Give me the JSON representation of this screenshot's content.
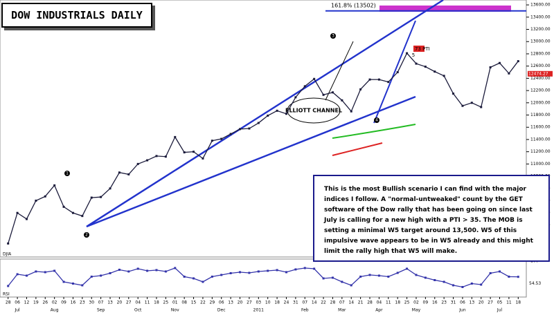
{
  "header": {
    "title": "DOW INDUSTRIALS DAILY"
  },
  "note": "This is the most Bullish scenario I can find with the major indices I follow. A \"normal-untweaked\" count by the GET software of the Dow rally that has been going on since last July is calling for a new high with a PTI > 35. The MOB is setting a minimal W5 target around 13,500. W5 of this impulsive wave appears to be in W5 already and this might limit the rally high that W5 will make.",
  "annotations": {
    "channel": "ELLIOTT CHANNEL",
    "pti": "73 PTI",
    "waves": [
      "1",
      "2",
      "3",
      "4",
      "5"
    ]
  },
  "chart_data": [
    {
      "type": "line",
      "categories": [
        "28",
        "06",
        "12",
        "19",
        "26",
        "02",
        "09",
        "16",
        "23",
        "30",
        "07",
        "13",
        "20",
        "27",
        "04",
        "11",
        "18",
        "25",
        "01",
        "08",
        "15",
        "22",
        "29",
        "06",
        "13",
        "20",
        "27",
        "03",
        "10",
        "18",
        "24",
        "31",
        "07",
        "14",
        "22",
        "28",
        "07",
        "14",
        "21",
        "28",
        "04",
        "11",
        "18",
        "25",
        "02",
        "09",
        "16",
        "23",
        "31",
        "06",
        "13",
        "20",
        "27",
        "05",
        "11",
        "18"
      ],
      "months": [
        "Jul",
        "Aug",
        "Sep",
        "Oct",
        "Nov",
        "Dec",
        "2011",
        "Feb",
        "Mar",
        "Apr",
        "May",
        "Jun",
        "Jul"
      ],
      "series": [
        {
          "name": "DJIA",
          "color": "#1a1a3a",
          "values": [
            9700,
            10200,
            10100,
            10400,
            10470,
            10650,
            10300,
            10200,
            10150,
            10450,
            10460,
            10600,
            10860,
            10830,
            11000,
            11060,
            11130,
            11120,
            11440,
            11190,
            11200,
            11090,
            11380,
            11410,
            11490,
            11570,
            11580,
            11670,
            11790,
            11870,
            11820,
            12090,
            12270,
            12390,
            12130,
            12170,
            12040,
            11860,
            12220,
            12380,
            12380,
            12340,
            12500,
            12810,
            12640,
            12590,
            12510,
            12440,
            12150,
            11950,
            12000,
            11930,
            12580,
            12650,
            12480,
            12680
          ]
        }
      ],
      "marker_value": 12474.27,
      "fib_label": "161.8% (13502)",
      "fib_level": 13502,
      "ylim": [
        9480,
        13680
      ],
      "yticks": [
        {
          "value": 9600,
          "label": "9600.00"
        },
        {
          "value": 9800,
          "label": "9800.00"
        },
        {
          "value": 10000,
          "label": "10000.00"
        },
        {
          "value": 10200,
          "label": "10200.00"
        },
        {
          "value": 10400,
          "label": "10400.00"
        },
        {
          "value": 10600,
          "label": "10600.00"
        },
        {
          "value": 10800,
          "label": "10800.00"
        },
        {
          "value": 11000,
          "label": "11000.00"
        },
        {
          "value": 11200,
          "label": "11200.00"
        },
        {
          "value": 11400,
          "label": "11400.00"
        },
        {
          "value": 11600,
          "label": "11600.00"
        },
        {
          "value": 11800,
          "label": "11800.00"
        },
        {
          "value": 12000,
          "label": "12000.00"
        },
        {
          "value": 12200,
          "label": "12200.00"
        },
        {
          "value": 12400,
          "label": "12400.00"
        },
        {
          "value": 12600,
          "label": "12600.00"
        },
        {
          "value": 12800,
          "label": "12800.00"
        },
        {
          "value": 13000,
          "label": "13000.00"
        },
        {
          "value": 13200,
          "label": "13200.00"
        },
        {
          "value": 13400,
          "label": "13400.00"
        },
        {
          "value": 13600,
          "label": "13600.00"
        }
      ]
    },
    {
      "type": "line",
      "series": [
        {
          "name": "RSI",
          "color": "#3333aa",
          "values": [
            28,
            62,
            58,
            70,
            68,
            72,
            40,
            35,
            30,
            55,
            58,
            65,
            75,
            70,
            78,
            72,
            74,
            70,
            80,
            55,
            50,
            40,
            55,
            60,
            65,
            68,
            66,
            70,
            72,
            74,
            68,
            76,
            80,
            78,
            50,
            52,
            40,
            30,
            55,
            60,
            58,
            55,
            66,
            78,
            60,
            52,
            45,
            40,
            30,
            25,
            35,
            32,
            65,
            70,
            55,
            54.53
          ]
        }
      ],
      "ylim": [
        0,
        100
      ],
      "yticks": [
        100
      ]
    }
  ]
}
